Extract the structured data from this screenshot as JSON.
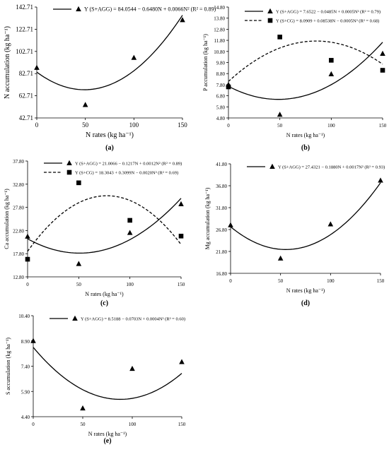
{
  "chart_data": [
    {
      "type": "scatter",
      "panel_label": "(a)",
      "xlabel": "N rates (kg ha⁻¹)",
      "ylabel": "N accumulation (kg ha⁻¹)",
      "xlim": [
        0,
        150
      ],
      "ylim": [
        42.71,
        142.71
      ],
      "xticks": [
        "0",
        "50",
        "100",
        "150"
      ],
      "xtick_values": [
        0,
        50,
        100,
        150
      ],
      "yticks": [
        "42.71",
        "62.71",
        "82.71",
        "102.71",
        "122.71",
        "142.71"
      ],
      "ytick_values": [
        42.71,
        62.71,
        82.71,
        102.71,
        122.71,
        142.71
      ],
      "legend_position": "top",
      "series": [
        {
          "name": "Y (S+AGG) = 84.0544 − 0.6480N + 0.0066N²  (R² = 0.89)",
          "marker": "triangle",
          "line": "solid",
          "coef": [
            84.0544,
            -0.648,
            0.0066
          ],
          "points": [
            [
              0,
              88.0
            ],
            [
              50,
              54.5
            ],
            [
              100,
              97.0
            ],
            [
              150,
              131.0
            ]
          ]
        }
      ]
    },
    {
      "type": "scatter",
      "panel_label": "(b)",
      "xlabel": "N rates (kg ha⁻¹)",
      "ylabel": "P accumulation (kg ha⁻¹)",
      "xlim": [
        0,
        150
      ],
      "ylim": [
        4.8,
        14.8
      ],
      "xticks": [
        "0",
        "50",
        "100",
        "150"
      ],
      "xtick_values": [
        0,
        50,
        100,
        150
      ],
      "yticks": [
        "4.80",
        "5.80",
        "6.80",
        "7.80",
        "8.80",
        "9.80",
        "10.80",
        "11.80",
        "12.80",
        "13.80",
        "14.80"
      ],
      "ytick_values": [
        4.8,
        5.8,
        6.8,
        7.8,
        8.8,
        9.8,
        10.8,
        11.8,
        12.8,
        13.8,
        14.8
      ],
      "legend_position": "top",
      "series": [
        {
          "name": "Y (S+AGG) = 7.6522 − 0.0485N + 0.0005N²  (R² = 0.79)",
          "marker": "triangle",
          "line": "solid",
          "coef": [
            7.6522,
            -0.0485,
            0.0005
          ],
          "points": [
            [
              0,
              7.8
            ],
            [
              50,
              5.1
            ],
            [
              100,
              8.75
            ],
            [
              150,
              10.6
            ]
          ]
        },
        {
          "name": "Y (S+CG) = 8.0909 + 0.08538N − 0.0005N²  (R² = 0.68)",
          "marker": "square",
          "line": "dashed",
          "coef": [
            8.0909,
            0.08538,
            -0.0005
          ],
          "points": [
            [
              0,
              7.6
            ],
            [
              50,
              12.1
            ],
            [
              100,
              10.0
            ],
            [
              150,
              9.1
            ]
          ]
        }
      ]
    },
    {
      "type": "scatter",
      "panel_label": "(c)",
      "xlabel": "N rates (kg ha⁻¹)",
      "ylabel": "Ca accumulation (kg ha⁻¹)",
      "xlim": [
        0,
        150
      ],
      "ylim": [
        12.8,
        37.8
      ],
      "xticks": [
        "0",
        "50",
        "100",
        "150"
      ],
      "xtick_values": [
        0,
        50,
        100,
        150
      ],
      "yticks": [
        "12.80",
        "17.80",
        "22.80",
        "27.80",
        "32.80",
        "37.80"
      ],
      "ytick_values": [
        12.8,
        17.8,
        22.8,
        27.8,
        32.8,
        37.8
      ],
      "legend_position": "top",
      "series": [
        {
          "name": "Y (S+AGG) = 21.0066 − 0.1217N + 0.0012N²  (R² = 0.89)",
          "marker": "triangle",
          "line": "solid",
          "coef": [
            21.0066,
            -0.1217,
            0.0012
          ],
          "points": [
            [
              0,
              21.5
            ],
            [
              50,
              15.6
            ],
            [
              100,
              22.3
            ],
            [
              150,
              28.5
            ]
          ]
        },
        {
          "name": "Y (S+CG) = 18.3043 + 0.3099N − 0.0020N²  (R² = 0.69)",
          "marker": "square",
          "line": "dashed",
          "coef": [
            18.3043,
            0.3099,
            -0.002
          ],
          "points": [
            [
              0,
              16.6
            ],
            [
              50,
              33.1
            ],
            [
              100,
              25.0
            ],
            [
              150,
              21.6
            ]
          ]
        }
      ]
    },
    {
      "type": "scatter",
      "panel_label": "(d)",
      "xlabel": "N rates (kg ha⁻¹)",
      "ylabel": "Mg accumulation (kg ha⁻¹)",
      "xlim": [
        0,
        150
      ],
      "ylim": [
        16.8,
        41.8
      ],
      "xticks": [
        "0",
        "50",
        "100",
        "150"
      ],
      "xtick_values": [
        0,
        50,
        100,
        150
      ],
      "yticks": [
        "16.80",
        "21.80",
        "26.80",
        "31.80",
        "36.80",
        "41.80"
      ],
      "ytick_values": [
        16.8,
        21.8,
        26.8,
        31.8,
        36.8,
        41.8
      ],
      "legend_position": "top",
      "series": [
        {
          "name": "Y (S+AGG) = 27.4321 − 0.1880N + 0.0017N²  (R² = 0.93)",
          "marker": "triangle",
          "line": "solid",
          "coef": [
            27.4321,
            -0.188,
            0.0017
          ],
          "points": [
            [
              0,
              27.8
            ],
            [
              50,
              20.2
            ],
            [
              100,
              28.0
            ],
            [
              150,
              38.0
            ]
          ]
        }
      ]
    },
    {
      "type": "scatter",
      "panel_label": "(e)",
      "xlabel": "N rates (kg ha⁻¹)",
      "ylabel": "S accumulation (kg ha⁻¹)",
      "xlim": [
        0,
        150
      ],
      "ylim": [
        4.4,
        10.4
      ],
      "xticks": [
        "0",
        "50",
        "100",
        "150"
      ],
      "xtick_values": [
        0,
        50,
        100,
        150
      ],
      "yticks": [
        "4.40",
        "5.90",
        "7.40",
        "8.90",
        "10.40"
      ],
      "ytick_values": [
        4.4,
        5.9,
        7.4,
        8.9,
        10.4
      ],
      "legend_position": "top",
      "series": [
        {
          "name": "Y (S+AGG) = 8.5188 − 0.0703N + 0.0004N²  (R² = 0.60)",
          "marker": "triangle",
          "line": "solid",
          "coef": [
            8.5188,
            -0.0703,
            0.0004
          ],
          "points": [
            [
              0,
              8.9
            ],
            [
              50,
              4.9
            ],
            [
              100,
              7.25
            ],
            [
              150,
              7.65
            ]
          ]
        }
      ]
    }
  ]
}
